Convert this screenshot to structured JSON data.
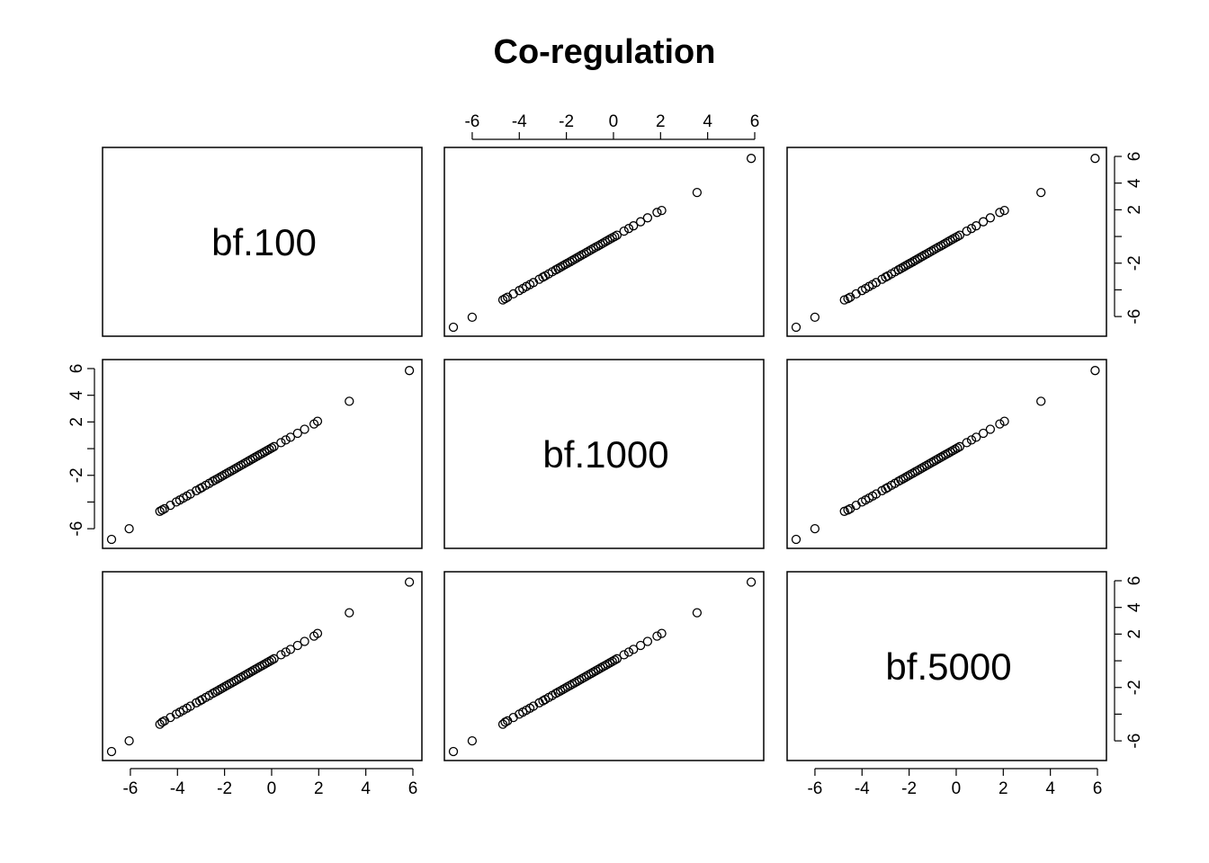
{
  "chart_data": {
    "type": "scatter-matrix",
    "title": "Co-regulation",
    "variables": [
      "bf.100",
      "bf.1000",
      "bf.5000"
    ],
    "axis_ticks": [
      -6,
      -4,
      -2,
      0,
      2,
      4,
      6
    ],
    "axis_tick_labels": [
      "-6",
      "-4",
      "-2",
      "0",
      "2",
      "4",
      "6"
    ],
    "right_axis_tick_labels": [
      "-6",
      "",
      "-2",
      "",
      "2",
      "4",
      "6"
    ],
    "left_axis_tick_labels": [
      "-6",
      "",
      "-2",
      "",
      "2",
      "4",
      "6"
    ],
    "axis_range": [
      -6.8,
      6.0
    ],
    "grid": false,
    "point_symbol": "open-circle",
    "data": {
      "bf.100": [
        -6.8,
        -6.05,
        -4.75,
        -4.65,
        -4.55,
        -4.3,
        -4.05,
        -3.9,
        -3.75,
        -3.6,
        -3.45,
        -3.2,
        -3.05,
        -2.95,
        -2.8,
        -2.65,
        -2.5,
        -2.4,
        -2.3,
        -2.2,
        -2.1,
        -2.0,
        -1.9,
        -1.8,
        -1.7,
        -1.6,
        -1.5,
        -1.4,
        -1.3,
        -1.2,
        -1.1,
        -1.0,
        -0.9,
        -0.8,
        -0.7,
        -0.6,
        -0.5,
        -0.4,
        -0.3,
        -0.2,
        -0.1,
        0.0,
        0.1,
        0.4,
        0.6,
        0.8,
        1.1,
        1.4,
        1.8,
        1.95,
        3.3,
        5.85
      ],
      "bf.1000": [
        -6.8,
        -6.0,
        -4.7,
        -4.6,
        -4.5,
        -4.25,
        -4.0,
        -3.85,
        -3.7,
        -3.55,
        -3.4,
        -3.15,
        -3.0,
        -2.9,
        -2.75,
        -2.6,
        -2.45,
        -2.35,
        -2.25,
        -2.15,
        -2.05,
        -1.95,
        -1.85,
        -1.75,
        -1.65,
        -1.55,
        -1.45,
        -1.35,
        -1.25,
        -1.15,
        -1.05,
        -0.95,
        -0.85,
        -0.75,
        -0.65,
        -0.55,
        -0.45,
        -0.35,
        -0.25,
        -0.15,
        -0.05,
        0.05,
        0.15,
        0.45,
        0.65,
        0.85,
        1.15,
        1.45,
        1.85,
        2.05,
        3.55,
        5.85
      ],
      "bf.5000": [
        -6.8,
        -6.0,
        -4.75,
        -4.6,
        -4.5,
        -4.25,
        -4.0,
        -3.85,
        -3.7,
        -3.55,
        -3.4,
        -3.15,
        -3.0,
        -2.9,
        -2.75,
        -2.6,
        -2.45,
        -2.35,
        -2.25,
        -2.15,
        -2.05,
        -1.95,
        -1.85,
        -1.75,
        -1.65,
        -1.55,
        -1.45,
        -1.35,
        -1.25,
        -1.15,
        -1.05,
        -0.95,
        -0.85,
        -0.75,
        -0.65,
        -0.55,
        -0.45,
        -0.35,
        -0.25,
        -0.15,
        -0.05,
        0.05,
        0.15,
        0.45,
        0.65,
        0.85,
        1.15,
        1.45,
        1.85,
        2.05,
        3.6,
        5.9
      ]
    }
  }
}
